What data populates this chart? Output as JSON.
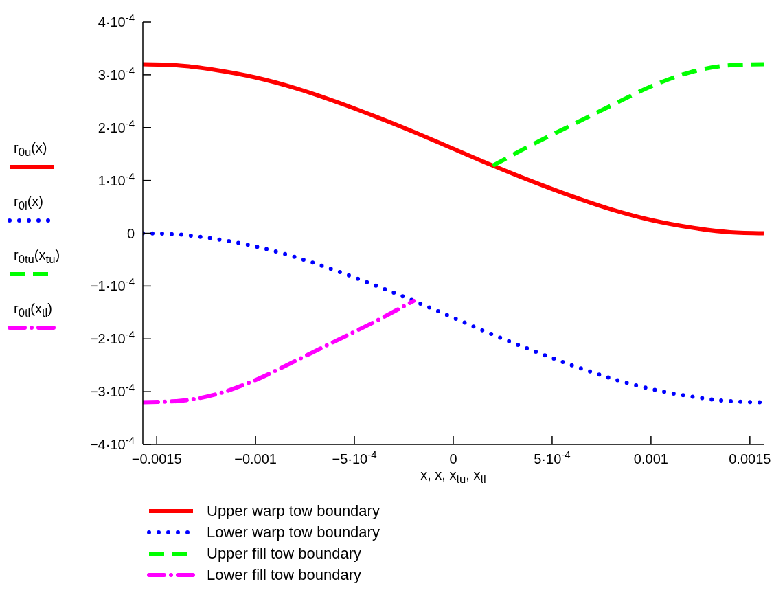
{
  "chart_data": {
    "type": "line",
    "xlabel": "x, x, x$_{tu}$, x$_{tl}$",
    "ylabel": [
      "r$_{0u}$(x)",
      "r$_{0l}$(x)",
      "r$_{0tu}$(x$_{tu}$)",
      "r$_{0tl}$(x$_{tl}$)"
    ],
    "xlim": [
      -0.00157,
      0.00157
    ],
    "xticks": [
      {
        "value": -0.0015,
        "label": "−0.0015"
      },
      {
        "value": -0.001,
        "label": "−0.001"
      },
      {
        "value": -0.0005,
        "label": "−5·10$^{-4}$"
      },
      0,
      {
        "value": 0.0005,
        "label": "5·10$^{-4}$"
      },
      {
        "value": 0.001,
        "label": "0.001"
      },
      {
        "value": 0.0015,
        "label": "0.0015"
      }
    ],
    "ylim": [
      -0.0004,
      0.0004
    ],
    "yticks": [
      {
        "value": -0.0004,
        "label": "−4·10$^{-4}$"
      },
      {
        "value": -0.0003,
        "label": "−3·10$^{-4}$"
      },
      {
        "value": -0.0002,
        "label": "−2·10$^{-4}$"
      },
      {
        "value": -0.0001,
        "label": "−1·10$^{-4}$"
      },
      0,
      {
        "value": 0.0001,
        "label": "1·10$^{-4}$"
      },
      {
        "value": 0.0002,
        "label": "2·10$^{-4}$"
      },
      {
        "value": 0.0003,
        "label": "3·10$^{-4}$"
      },
      {
        "value": 0.0004,
        "label": "4·10$^{-4}$"
      }
    ],
    "grid": false,
    "legend": "bottom",
    "marker": "none",
    "series": [
      {
        "name": "Upper warp tow boundary",
        "color": "#ff0000",
        "line_style": "solid",
        "x": [
          -0.00157,
          -0.0014,
          -0.0012,
          -0.001,
          -0.0008,
          -0.0006,
          -0.0004,
          -0.0002,
          0,
          0.0002,
          0.0004,
          0.0006,
          0.0008,
          0.001,
          0.0012,
          0.0014,
          0.00157
        ],
        "values": [
          0.00032,
          0.000318,
          0.000309,
          0.000295,
          0.000275,
          0.00025,
          0.000222,
          0.000192,
          0.00016,
          0.000128,
          9.8e-05,
          7e-05,
          4.5e-05,
          2.5e-05,
          1.1e-05,
          2e-06,
          0
        ]
      },
      {
        "name": "Lower warp tow boundary",
        "color": "#0000ff",
        "line_style": "dotted",
        "x": [
          -0.00157,
          -0.0014,
          -0.0012,
          -0.001,
          -0.0008,
          -0.0006,
          -0.0004,
          -0.0002,
          0,
          0.0002,
          0.0004,
          0.0006,
          0.0008,
          0.001,
          0.0012,
          0.0014,
          0.00157
        ],
        "values": [
          0,
          -2e-06,
          -1.1e-05,
          -2.5e-05,
          -4.5e-05,
          -7e-05,
          -9.8e-05,
          -0.000128,
          -0.00016,
          -0.000192,
          -0.000222,
          -0.00025,
          -0.000275,
          -0.000295,
          -0.000309,
          -0.000318,
          -0.00032
        ]
      },
      {
        "name": "Upper fill tow boundary",
        "color": "#00ff00",
        "line_style": "dashed",
        "x": [
          0.0002,
          0.0004,
          0.0006,
          0.0008,
          0.001,
          0.0012,
          0.0014,
          0.00157
        ],
        "values": [
          0.000128,
          0.000168,
          0.000205,
          0.000242,
          0.000278,
          0.000305,
          0.000318,
          0.00032
        ]
      },
      {
        "name": "Lower fill tow boundary",
        "color": "#ff00ff",
        "line_style": "dashdot",
        "x": [
          -0.00157,
          -0.0014,
          -0.0012,
          -0.001,
          -0.0008,
          -0.0006,
          -0.0004,
          -0.0002
        ],
        "values": [
          -0.00032,
          -0.000318,
          -0.000305,
          -0.000278,
          -0.000242,
          -0.000205,
          -0.000168,
          -0.000128
        ]
      }
    ]
  }
}
